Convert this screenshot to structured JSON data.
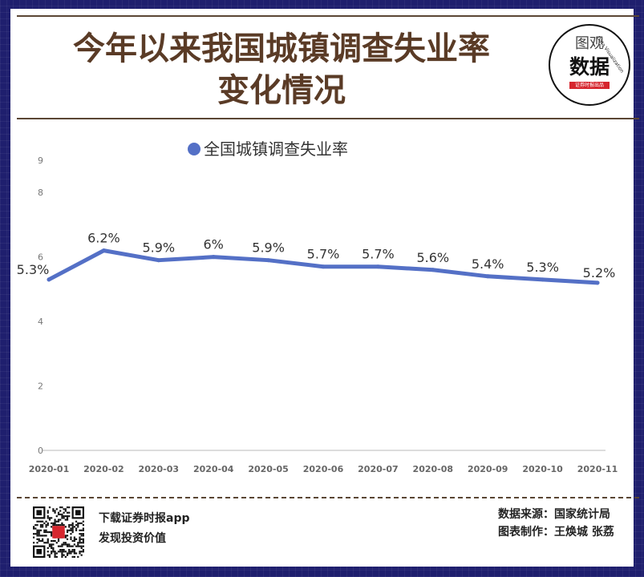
{
  "header": {
    "title_line1": "今年以来我国城镇调查失业率",
    "title_line2": "变化情况"
  },
  "logo": {
    "top": "图观",
    "main": "数据",
    "arc": "Data Visualization",
    "red": "证券时报出品"
  },
  "chart_data": {
    "type": "line",
    "categories": [
      "2020-01",
      "2020-02",
      "2020-03",
      "2020-04",
      "2020-05",
      "2020-06",
      "2020-07",
      "2020-08",
      "2020-09",
      "2020-10",
      "2020-11"
    ],
    "series": [
      {
        "name": "全国城镇调查失业率",
        "values": [
          5.3,
          6.2,
          5.9,
          6.0,
          5.9,
          5.7,
          5.7,
          5.6,
          5.4,
          5.3,
          5.2
        ],
        "labels": [
          "5.3%",
          "6.2%",
          "5.9%",
          "6%",
          "5.9%",
          "5.7%",
          "5.7%",
          "5.6%",
          "5.4%",
          "5.3%",
          "5.2%"
        ],
        "color": "#5470c6"
      }
    ],
    "y_ticks": [
      "0",
      "2",
      "4",
      "6",
      "8",
      "9"
    ],
    "y_tick_values": [
      0,
      2,
      4,
      6,
      8,
      9
    ],
    "ylim": [
      0,
      9
    ],
    "grid": false,
    "legend": "top-center"
  },
  "footer": {
    "left_line1": "下载证券时报app",
    "left_line2": "发现投资价值",
    "right_line1": "数据来源：国家统计局",
    "right_line2": "图表制作：王焕城 张荔"
  },
  "colors": {
    "line": "#5470c6",
    "title": "#5a3b26",
    "frame": "#1f1f6e"
  }
}
